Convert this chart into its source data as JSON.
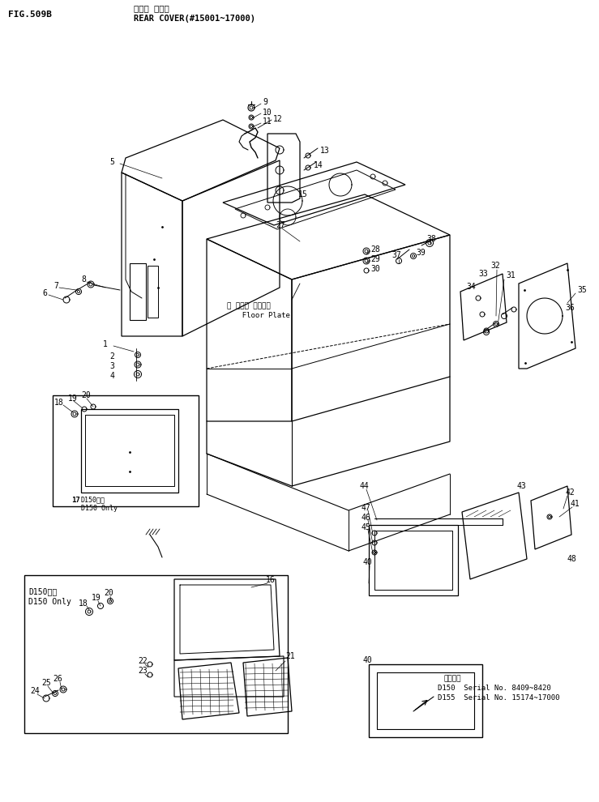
{
  "title_jp": "リヤー カバー",
  "title_en": "REAR COVER(#15001~17000)",
  "fig_num": "FIG.509B",
  "bg": "#ffffff",
  "lc": "#000000",
  "serial_info_title": "適用番号",
  "serial_d150": "D150  Serial No. 8409~8420",
  "serial_d155": "D155  Serial No. 15174~17000",
  "floor_plate_jp": "フロア プレート",
  "floor_plate_en": "Floor Plate",
  "d150_only_jp": "D150専用",
  "d150_only_en": "D150 Only",
  "d150_only2_jp": "D150専用",
  "d150_only2_en": "D150 Only"
}
